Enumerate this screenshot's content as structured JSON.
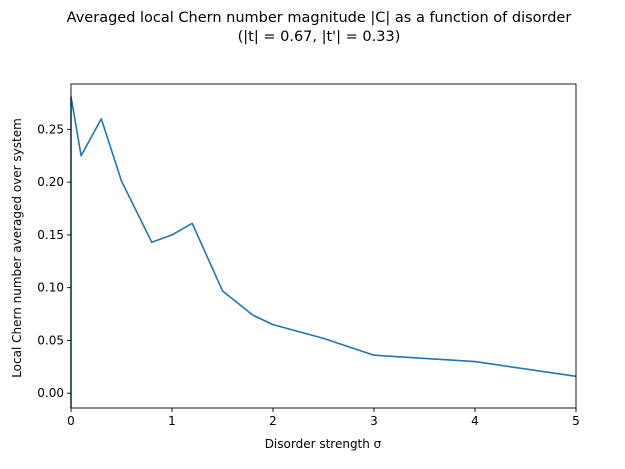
{
  "chart_data": {
    "type": "line",
    "title": "Averaged local Chern number magnitude |C| as a function of disorder",
    "subtitle": "(|t| = 0.67, |t'| = 0.33)",
    "xlabel": "Disorder strength σ",
    "ylabel": "Local Chern number averaged over system",
    "xlim": [
      0,
      5
    ],
    "ylim": [
      -0.014,
      0.293
    ],
    "xticks": [
      0,
      1,
      2,
      3,
      4,
      5
    ],
    "xtick_labels": [
      "0",
      "1",
      "2",
      "3",
      "4",
      "5"
    ],
    "yticks": [
      0.0,
      0.05,
      0.1,
      0.15,
      0.2,
      0.25
    ],
    "ytick_labels": [
      "0.00",
      "0.05",
      "0.10",
      "0.15",
      "0.20",
      "0.25"
    ],
    "grid": false,
    "series": [
      {
        "color": "#1f77b4",
        "x": [
          0.0,
          0.0,
          0.1,
          0.3,
          0.5,
          0.8,
          1.0,
          1.2,
          1.5,
          1.8,
          2.0,
          2.5,
          3.0,
          4.0,
          5.0
        ],
        "y": [
          -0.014,
          0.281,
          0.225,
          0.26,
          0.201,
          0.143,
          0.15,
          0.161,
          0.097,
          0.074,
          0.065,
          0.052,
          0.036,
          0.03,
          0.016
        ]
      }
    ]
  }
}
